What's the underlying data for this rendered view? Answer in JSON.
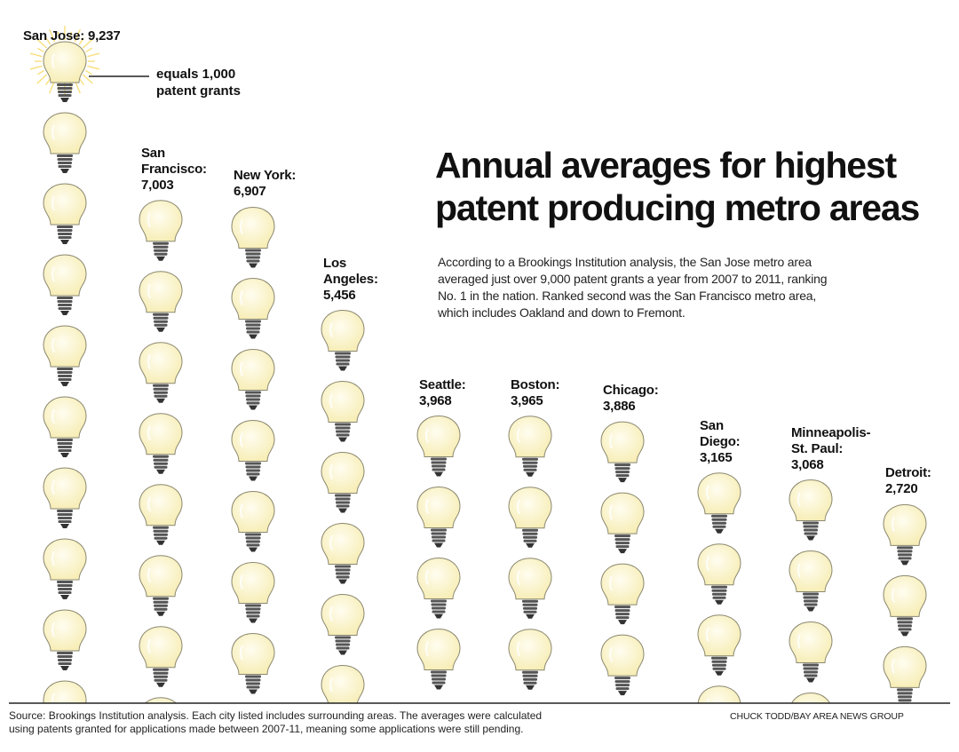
{
  "title": "Annual averages for highest\npatent producing metro areas",
  "subtitle": "According to a Brookings Institution analysis, the San Jose metro area\naveraged just over 9,000 patent grants a year from 2007 to 2011, ranking\nNo. 1 in the nation. Ranked second was the San Francisco metro area,\nwhich includes Oakland and down to Fremont.",
  "legend": {
    "text": "equals  1,000\npatent grants",
    "unit_value": 1000,
    "icon": "lightbulb-icon"
  },
  "source": "Source: Brookings Institution analysis. Each city listed includes surrounding areas. The averages were calculated\nusing patents granted for applications made between 2007-11, meaning some applications were still pending.",
  "credit": "CHUCK TODD/BAY AREA NEWS GROUP",
  "colors": {
    "bulb_fill": "#fbf3c8",
    "bulb_center": "#fffdf0",
    "bulb_stroke": "#8a8770",
    "base": "#555555",
    "glow": "#f2c200",
    "baseline": "#222222"
  },
  "chart_data": {
    "type": "bar",
    "categories": [
      "San Jose",
      "San Francisco",
      "New York",
      "Los Angeles",
      "Seattle",
      "Boston",
      "Chicago",
      "San Diego",
      "Minneapolis-St. Paul",
      "Detroit"
    ],
    "values": [
      9237,
      7003,
      6907,
      5456,
      3968,
      3965,
      3886,
      3165,
      3068,
      2720
    ],
    "labels": [
      "San Jose: 9,237",
      "San\nFrancisco:\n7,003",
      "New York:\n6,907",
      "Los\nAngeles:\n5,456",
      "Seattle:\n3,968",
      "Boston:\n3,965",
      "Chicago:\n3,886",
      "San\nDiego:\n3,165",
      "Minneapolis-\nSt. Paul:\n3,068",
      "Detroit:\n2,720"
    ],
    "title": "Annual averages for highest patent producing metro areas",
    "xlabel": "",
    "ylabel": "",
    "ylim": [
      0,
      10000
    ]
  }
}
